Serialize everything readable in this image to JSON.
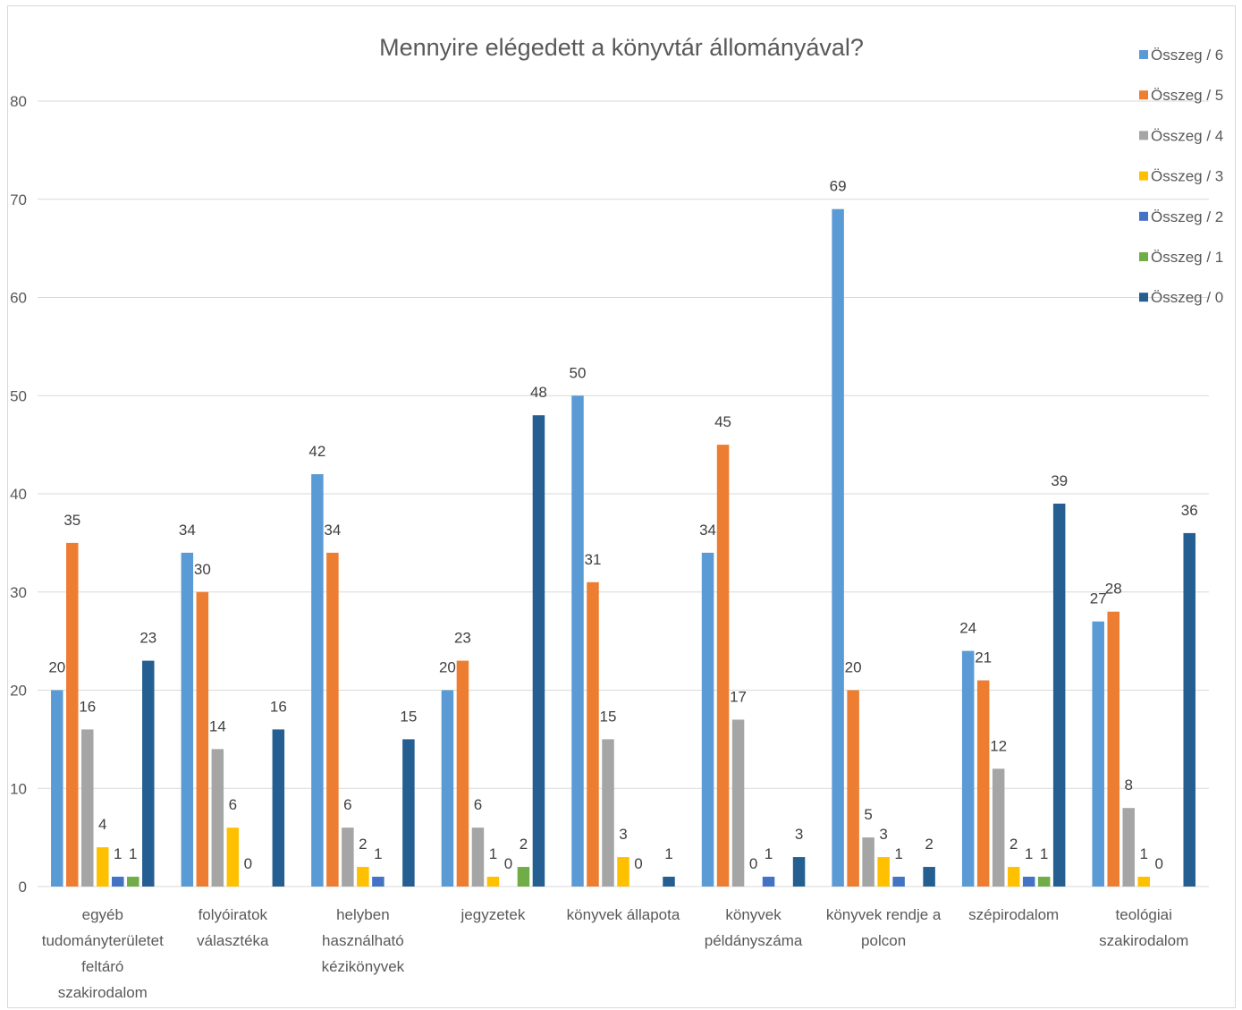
{
  "chart_data": {
    "type": "bar",
    "title": "Mennyire elégedett a könyvtár állományával?",
    "ylim": [
      0,
      80
    ],
    "yticks": [
      0,
      10,
      20,
      30,
      40,
      50,
      60,
      70,
      80
    ],
    "grid": true,
    "legend_position": "right",
    "categories": [
      [
        "egyéb",
        "tudományterületet",
        "feltáró",
        "szakirodalom"
      ],
      [
        "folyóiratok",
        "választéka"
      ],
      [
        "helyben",
        "használható",
        "kézikönyvek"
      ],
      [
        "jegyzetek"
      ],
      [
        "könyvek állapota"
      ],
      [
        "könyvek",
        "példányszáma"
      ],
      [
        "könyvek rendje a",
        "polcon"
      ],
      [
        "szépirodalom"
      ],
      [
        "teológiai",
        "szakirodalom"
      ]
    ],
    "series": [
      {
        "name": "Összeg / 6",
        "color": "#5B9BD5",
        "values": [
          20,
          34,
          42,
          20,
          50,
          34,
          69,
          24,
          27
        ]
      },
      {
        "name": "Összeg / 5",
        "color": "#ED7D31",
        "values": [
          35,
          30,
          34,
          23,
          31,
          45,
          20,
          21,
          28
        ]
      },
      {
        "name": "Összeg / 4",
        "color": "#A5A5A5",
        "values": [
          16,
          14,
          6,
          6,
          15,
          17,
          5,
          12,
          8
        ]
      },
      {
        "name": "Összeg / 3",
        "color": "#FFC000",
        "values": [
          4,
          6,
          2,
          1,
          3,
          0,
          3,
          2,
          1
        ]
      },
      {
        "name": "Összeg / 2",
        "color": "#4472C4",
        "values": [
          1,
          0,
          1,
          0,
          0,
          1,
          1,
          1,
          0
        ]
      },
      {
        "name": "Összeg / 1",
        "color": "#70AD47",
        "values": [
          1,
          null,
          null,
          2,
          null,
          null,
          null,
          1,
          null
        ]
      },
      {
        "name": "Összeg / 0",
        "color": "#255E91",
        "values": [
          23,
          16,
          15,
          48,
          1,
          3,
          2,
          39,
          36
        ]
      }
    ]
  }
}
